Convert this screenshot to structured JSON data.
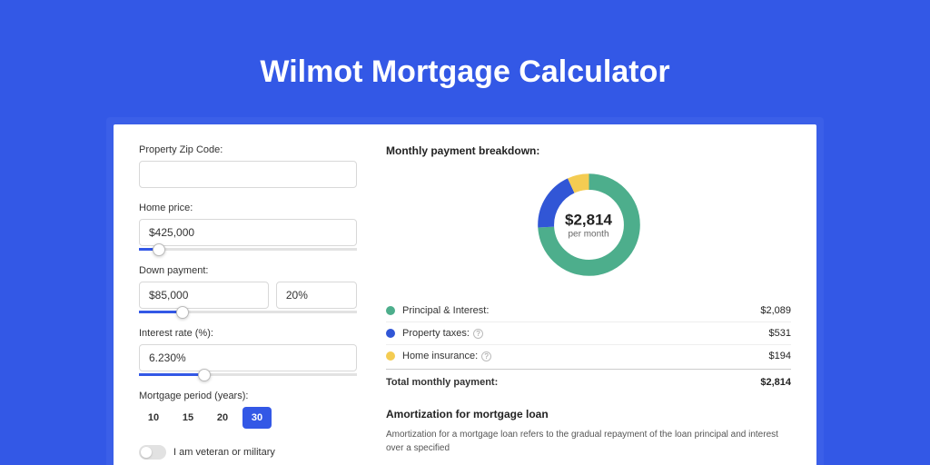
{
  "title": "Wilmot Mortgage Calculator",
  "form": {
    "zip_label": "Property Zip Code:",
    "zip_value": "",
    "home_price_label": "Home price:",
    "home_price_value": "$425,000",
    "home_price_slider_pct": 9,
    "down_payment_label": "Down payment:",
    "down_payment_value": "$85,000",
    "down_payment_pct_value": "20%",
    "down_payment_slider_pct": 20,
    "interest_label": "Interest rate (%):",
    "interest_value": "6.230%",
    "interest_slider_pct": 30,
    "period_label": "Mortgage period (years):",
    "period_options": [
      "10",
      "15",
      "20",
      "30"
    ],
    "period_active": "30",
    "veteran_label": "I am veteran or military"
  },
  "breakdown": {
    "title": "Monthly payment breakdown:",
    "center_amount": "$2,814",
    "center_sub": "per month",
    "items": [
      {
        "label": "Principal & Interest:",
        "value": "$2,089",
        "color": "#4dae8c",
        "pct": 74,
        "help": false
      },
      {
        "label": "Property taxes:",
        "value": "$531",
        "color": "#3156d6",
        "pct": 19,
        "help": true
      },
      {
        "label": "Home insurance:",
        "value": "$194",
        "color": "#f4cc52",
        "pct": 7,
        "help": true
      }
    ],
    "total_label": "Total monthly payment:",
    "total_value": "$2,814",
    "donut_colors": {
      "track": "#f0f0f0",
      "stroke_width": 18
    }
  },
  "amortization": {
    "title": "Amortization for mortgage loan",
    "body": "Amortization for a mortgage loan refers to the gradual repayment of the loan principal and interest over a specified"
  },
  "colors": {
    "page_bg": "#3358e6",
    "card_outer": "#3b5fe8",
    "card_bg": "#ffffff",
    "accent": "#3358e6"
  }
}
